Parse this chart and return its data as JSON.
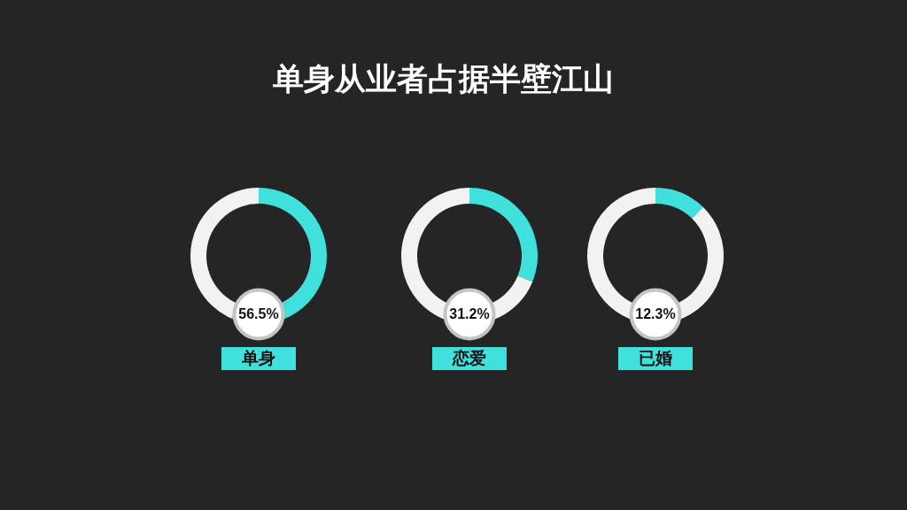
{
  "chart_data": [
    {
      "type": "other",
      "title": "单身从业者占据半壁江山"
    },
    {
      "type": "donut",
      "title": "单身",
      "categories": [
        null,
        null
      ],
      "values": [
        56.5,
        43.5
      ],
      "colors": [
        "#40e0dc",
        "#f2f2f2"
      ],
      "annotations": [
        "56.5%"
      ]
    },
    {
      "type": "donut",
      "title": "恋爱",
      "categories": [
        null,
        null
      ],
      "values": [
        31.2,
        68.8
      ],
      "colors": [
        "#40e0dc",
        "#f2f2f2"
      ],
      "annotations": [
        "31.2%"
      ]
    },
    {
      "type": "donut",
      "title": "已婚",
      "categories": [
        null,
        null
      ],
      "values": [
        12.3,
        87.7
      ],
      "colors": [
        "#40e0dc",
        "#f2f2f2"
      ],
      "annotations": [
        "12.3%"
      ]
    }
  ]
}
